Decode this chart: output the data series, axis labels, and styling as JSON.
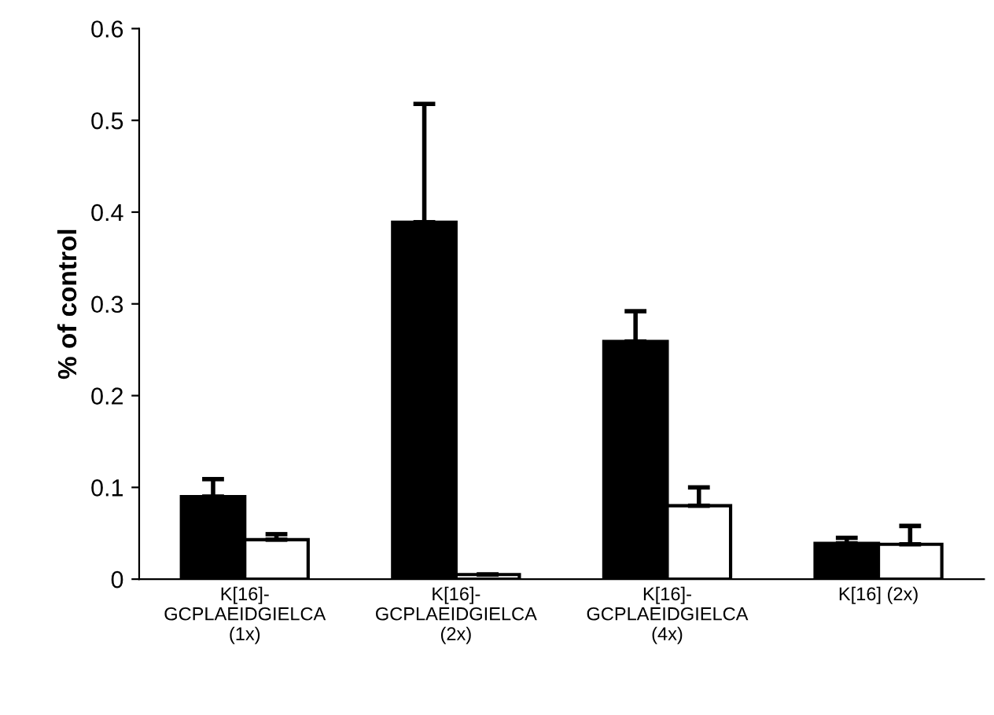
{
  "chart_data": {
    "type": "bar",
    "ylabel": "% of control",
    "categories": [
      "K[16]-\nGCPLAEIDGIELCA\n(1x)",
      "K[16]-\nGCPLAEIDGIELCA\n(2x)",
      "K[16]-\nGCPLAEIDGIELCA\n(4x)",
      "K[16] (2x)"
    ],
    "series": [
      {
        "color": "#000000",
        "values": [
          0.09,
          0.389,
          0.259,
          0.039
        ],
        "errors": [
          [
            0.09,
            0.109
          ],
          [
            0.389,
            0.518
          ],
          [
            0.259,
            0.292
          ],
          [
            0.039,
            0.045
          ]
        ]
      },
      {
        "color": "#ffffff",
        "values": [
          0.043,
          0.005,
          0.08,
          0.038
        ],
        "errors": [
          [
            0.043,
            0.049
          ],
          [
            0.005,
            0.005
          ],
          [
            0.08,
            0.1
          ],
          [
            0.038,
            0.058
          ]
        ]
      }
    ],
    "ylim": [
      0,
      0.6
    ],
    "yticks": [
      0,
      0.1,
      0.2,
      0.3,
      0.4,
      0.5,
      0.6
    ],
    "grid": false
  }
}
